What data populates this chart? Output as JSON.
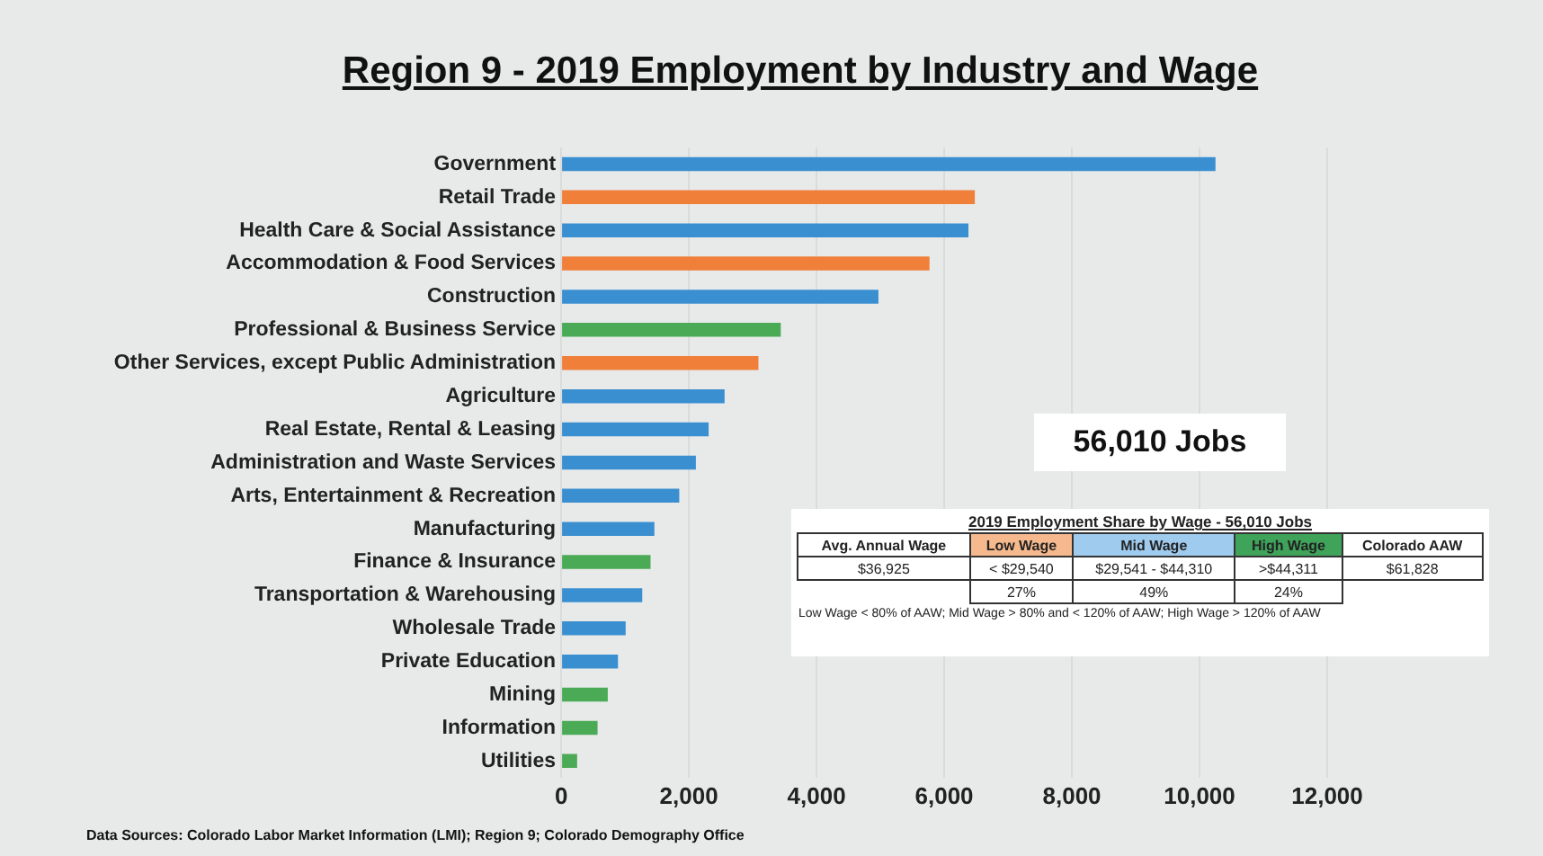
{
  "chart_data": {
    "type": "bar",
    "orientation": "horizontal",
    "title": "Region 9 -  2019 Employment by Industry and Wage",
    "categories": [
      "Government",
      "Retail Trade",
      "Health Care & Social Assistance",
      "Accommodation & Food Services",
      "Construction",
      "Professional & Business Service",
      "Other Services, except Public Administration",
      "Agriculture",
      "Real Estate, Rental & Leasing",
      "Administration and Waste Services",
      "Arts, Entertainment & Recreation",
      "Manufacturing",
      "Finance & Insurance",
      "Transportation & Warehousing",
      "Wholesale Trade",
      "Private Education",
      "Mining",
      "Information",
      "Utilities"
    ],
    "values": [
      10250,
      6480,
      6380,
      5770,
      4970,
      3440,
      3090,
      2560,
      2310,
      2110,
      1850,
      1460,
      1400,
      1270,
      1010,
      890,
      730,
      570,
      250
    ],
    "colors": [
      "#3a8fd0",
      "#f07f3a",
      "#3a8fd0",
      "#f07f3a",
      "#3a8fd0",
      "#4aaa55",
      "#f07f3a",
      "#3a8fd0",
      "#3a8fd0",
      "#3a8fd0",
      "#3a8fd0",
      "#3a8fd0",
      "#4aaa55",
      "#3a8fd0",
      "#3a8fd0",
      "#3a8fd0",
      "#4aaa55",
      "#4aaa55",
      "#4aaa55"
    ],
    "xlim": [
      0,
      12000
    ],
    "xticks": [
      {
        "value": 0,
        "label": "0"
      },
      {
        "value": 2000,
        "label": "2,000"
      },
      {
        "value": 4000,
        "label": "4,000"
      },
      {
        "value": 6000,
        "label": "6,000"
      },
      {
        "value": 8000,
        "label": "8,000"
      },
      {
        "value": 10000,
        "label": "10,000"
      },
      {
        "value": 12000,
        "label": "12,000"
      }
    ],
    "grid": "x",
    "legend": false,
    "annotations": [
      "56,010 Jobs",
      "2019 Employment Share by Wage - 56,010 Jobs",
      "Avg. Annual Wage",
      "Low Wage",
      "Mid Wage",
      "High Wage",
      "Colorado AAW",
      "$36,925",
      "< $29,540",
      "$29,541 - $44,310",
      ">$44,311",
      "$61,828",
      "27%",
      "49%",
      "24%",
      "Low Wage < 80% of AAW; Mid Wage > 80% and < 120% of AAW; High Wage > 120% of AAW",
      "Data Sources: Colorado Labor Market Information (LMI); Region 9; Colorado Demography Office"
    ]
  }
}
